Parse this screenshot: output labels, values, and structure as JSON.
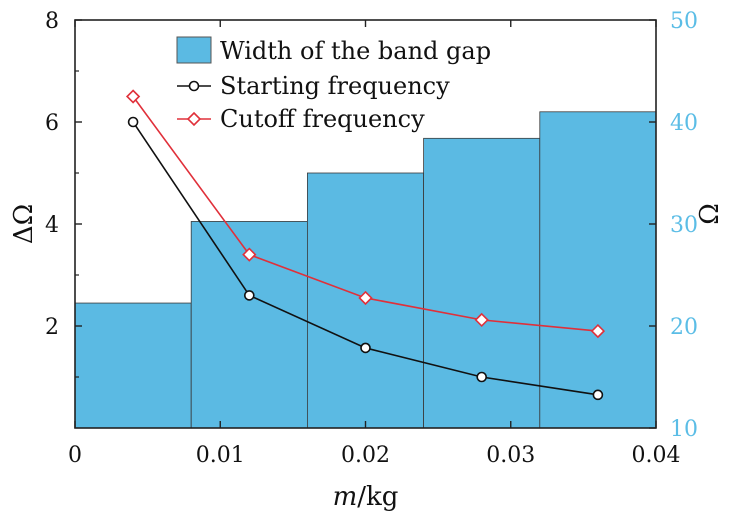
{
  "chart_data": {
    "type": "bar",
    "x_axis": {
      "label_var": "m",
      "label_unit": "/kg",
      "range": [
        0,
        0.04
      ],
      "ticks": [
        0,
        0.01,
        0.02,
        0.03,
        0.04
      ],
      "tick_labels": [
        "0",
        "0.01",
        "0.02",
        "0.03",
        "0.04"
      ]
    },
    "y_left": {
      "label": "ΔΩ",
      "range": [
        0,
        8
      ],
      "ticks": [
        2,
        4,
        6,
        8
      ],
      "tick_labels": [
        "2",
        "4",
        "6",
        "8"
      ]
    },
    "y_right": {
      "label": "Ω",
      "range": [
        10,
        50
      ],
      "ticks": [
        10,
        20,
        30,
        40,
        50
      ],
      "tick_labels": [
        "10",
        "20",
        "30",
        "40",
        "50"
      ],
      "color": "#5bbde6"
    },
    "bar_color": "#5bbae3",
    "bar_width": 0.008,
    "series": [
      {
        "name": "Width of the band gap",
        "kind": "bar",
        "axis": "left",
        "x": [
          0.004,
          0.012,
          0.02,
          0.028,
          0.036
        ],
        "values": [
          2.45,
          4.05,
          5.0,
          5.68,
          6.2
        ]
      },
      {
        "name": "Starting frequency",
        "kind": "line",
        "marker": "circle",
        "axis": "left",
        "color": "#111111",
        "x": [
          0.004,
          0.012,
          0.02,
          0.028,
          0.036
        ],
        "values": [
          6.0,
          2.6,
          1.57,
          1.0,
          0.65
        ]
      },
      {
        "name": "Cutoff frequency",
        "kind": "line",
        "marker": "diamond",
        "axis": "left",
        "color": "#e0303a",
        "x": [
          0.004,
          0.012,
          0.02,
          0.028,
          0.036
        ],
        "values": [
          6.5,
          3.4,
          2.55,
          2.12,
          1.9
        ]
      }
    ],
    "legend_position": "top-center",
    "grid": false
  }
}
